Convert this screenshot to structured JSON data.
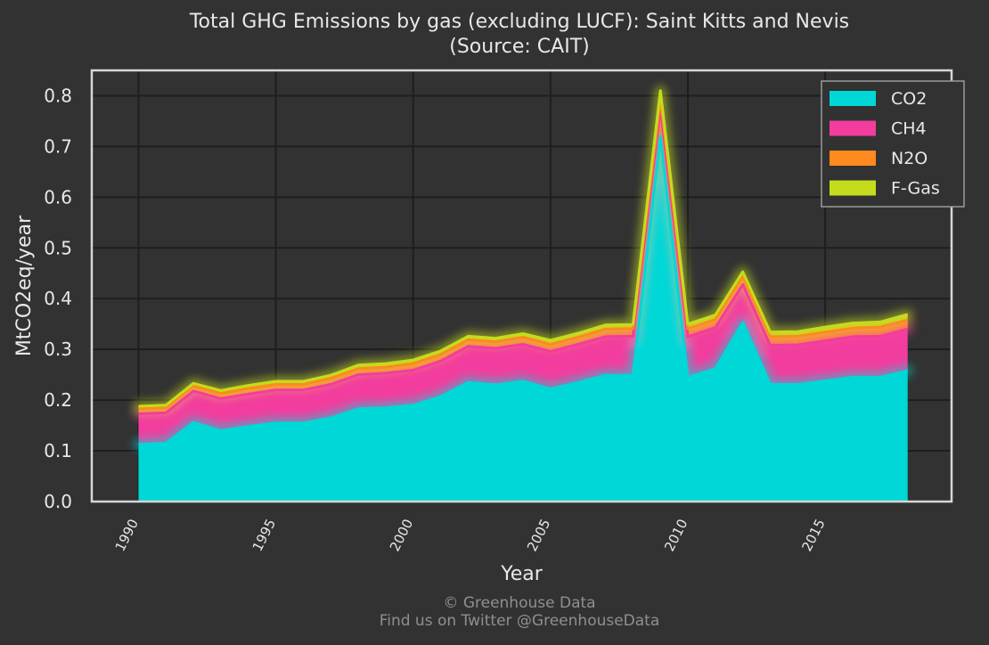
{
  "chart_data": {
    "type": "area",
    "stacked": true,
    "title": "Total GHG Emissions by gas (excluding LUCF): Saint Kitts and Nevis",
    "subtitle": "(Source: CAIT)",
    "xlabel": "Year",
    "ylabel": "MtCO2eq/year",
    "xlim": [
      1988.3,
      2019.6
    ],
    "ylim": [
      0,
      0.85
    ],
    "xticks": [
      1990,
      1995,
      2000,
      2005,
      2010,
      2015
    ],
    "yticks": [
      0.0,
      0.1,
      0.2,
      0.3,
      0.4,
      0.5,
      0.6,
      0.7,
      0.8
    ],
    "ytick_labels": [
      "0.0",
      "0.1",
      "0.2",
      "0.3",
      "0.4",
      "0.5",
      "0.6",
      "0.7",
      "0.8"
    ],
    "grid": true,
    "legend_position": "top-right",
    "x": [
      1990,
      1991,
      1992,
      1993,
      1994,
      1995,
      1996,
      1997,
      1998,
      1999,
      2000,
      2001,
      2002,
      2003,
      2004,
      2005,
      2006,
      2007,
      2008,
      2009,
      2010,
      2011,
      2012,
      2013,
      2014,
      2015,
      2016,
      2017,
      2018
    ],
    "series": [
      {
        "name": "CO2",
        "color": "#00d7d7",
        "values": [
          0.113,
          0.115,
          0.156,
          0.14,
          0.148,
          0.155,
          0.155,
          0.165,
          0.183,
          0.185,
          0.19,
          0.207,
          0.235,
          0.23,
          0.237,
          0.222,
          0.235,
          0.249,
          0.249,
          0.72,
          0.245,
          0.262,
          0.353,
          0.231,
          0.231,
          0.238,
          0.245,
          0.245,
          0.258
        ]
      },
      {
        "name": "CH4",
        "color": "#f23d9e",
        "values": [
          0.06,
          0.06,
          0.062,
          0.063,
          0.064,
          0.065,
          0.065,
          0.066,
          0.067,
          0.068,
          0.069,
          0.07,
          0.071,
          0.072,
          0.073,
          0.074,
          0.075,
          0.076,
          0.077,
          0.055,
          0.08,
          0.081,
          0.075,
          0.077,
          0.078,
          0.079,
          0.08,
          0.081,
          0.082
        ]
      },
      {
        "name": "N2O",
        "color": "#ff8a1e",
        "values": [
          0.01,
          0.01,
          0.01,
          0.01,
          0.011,
          0.011,
          0.011,
          0.012,
          0.012,
          0.012,
          0.013,
          0.013,
          0.013,
          0.013,
          0.014,
          0.014,
          0.014,
          0.015,
          0.015,
          0.02,
          0.016,
          0.016,
          0.016,
          0.017,
          0.017,
          0.017,
          0.017,
          0.018,
          0.018
        ]
      },
      {
        "name": "F-Gas",
        "color": "#c4dc1c",
        "values": [
          0.005,
          0.005,
          0.005,
          0.006,
          0.006,
          0.006,
          0.006,
          0.006,
          0.007,
          0.007,
          0.007,
          0.007,
          0.007,
          0.007,
          0.007,
          0.008,
          0.008,
          0.008,
          0.008,
          0.015,
          0.009,
          0.009,
          0.009,
          0.009,
          0.009,
          0.01,
          0.01,
          0.01,
          0.011
        ]
      }
    ]
  },
  "credit": {
    "line1": "© Greenhouse Data",
    "line2": "Find us on Twitter @GreenhouseData"
  },
  "colors": {
    "background": "#323232",
    "grid": "#1e1e1e",
    "frame": "#d6d6d6",
    "text": "#e8e8e8",
    "credit_text": "#8f8f8f"
  }
}
